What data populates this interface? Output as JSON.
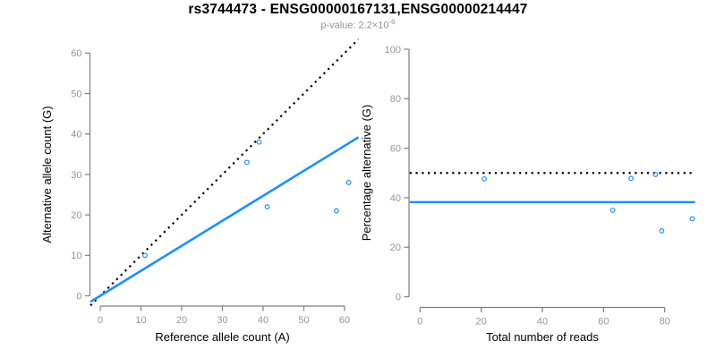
{
  "title": "rs3744473 - ENSG00000167131,ENSG00000214447",
  "subtitle": {
    "prefix": "p-value: ",
    "coefficient": "2.2",
    "multiplier_base": "×10",
    "exponent": "-6"
  },
  "colors": {
    "accent_blue": "#1E90FF",
    "dotted_line": "#000000",
    "axis": "#7F7F7F",
    "tick_label": "#979797",
    "axis_title": "#000000",
    "subtitle_gray": "#949494",
    "background": "#FFFFFF"
  },
  "chart_data": [
    {
      "type": "scatter",
      "name": "allele-counts-scatter",
      "xlabel": "Reference allele count (A)",
      "ylabel": "Alternative allele count (G)",
      "xlim": [
        0,
        60
      ],
      "ylim": [
        0,
        60
      ],
      "xticks": [
        0,
        10,
        20,
        30,
        40,
        50,
        60
      ],
      "yticks": [
        0,
        10,
        20,
        30,
        40,
        50,
        60
      ],
      "grid": false,
      "marker": "open-circle",
      "point_color": "#1E90FF",
      "points": [
        {
          "x": 11,
          "y": 10
        },
        {
          "x": 36,
          "y": 33
        },
        {
          "x": 39,
          "y": 38
        },
        {
          "x": 41,
          "y": 22
        },
        {
          "x": 58,
          "y": 21
        },
        {
          "x": 61,
          "y": 28
        }
      ],
      "lines": [
        {
          "name": "identity-line",
          "style": "dotted",
          "color": "#000000",
          "slope": 1,
          "intercept": 0
        },
        {
          "name": "fit-line",
          "style": "solid",
          "color": "#1E90FF",
          "slope": 0.618,
          "intercept": 0
        }
      ]
    },
    {
      "type": "scatter",
      "name": "percentage-scatter",
      "xlabel": "Total number of reads",
      "ylabel": "Percentage alternative (G)",
      "xlim": [
        0,
        89
      ],
      "ylim": [
        0,
        100
      ],
      "xticks": [
        0,
        20,
        40,
        60,
        80
      ],
      "yticks": [
        0,
        20,
        40,
        60,
        80,
        100
      ],
      "grid": false,
      "marker": "open-circle",
      "point_color": "#1E90FF",
      "points": [
        {
          "x": 21,
          "y": 47.6
        },
        {
          "x": 63,
          "y": 34.9
        },
        {
          "x": 69,
          "y": 47.8
        },
        {
          "x": 77,
          "y": 49.4
        },
        {
          "x": 79,
          "y": 26.6
        },
        {
          "x": 89,
          "y": 31.5
        }
      ],
      "lines": [
        {
          "name": "null-50pct-line",
          "style": "dotted",
          "color": "#000000",
          "h": 50
        },
        {
          "name": "overall-alt-pct-line",
          "style": "solid",
          "color": "#1E90FF",
          "h": 38.2
        }
      ]
    }
  ]
}
